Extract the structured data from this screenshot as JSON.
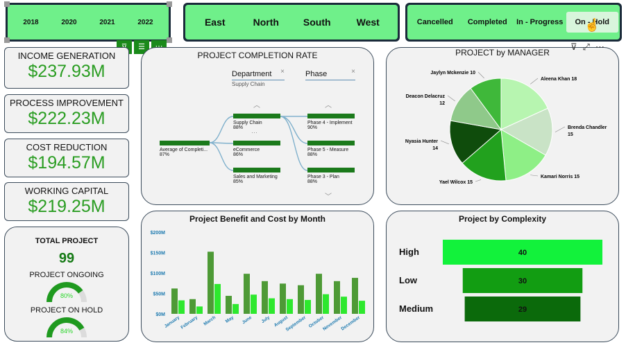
{
  "year_slicer": [
    "2018",
    "2020",
    "2021",
    "2022"
  ],
  "region_slicer": [
    "East",
    "North",
    "South",
    "West"
  ],
  "status_slicer": [
    "Cancelled",
    "Completed",
    "In - Progress",
    "On - Hold"
  ],
  "kpis": [
    {
      "label": "INCOME GENERATION",
      "value": "$237.93M"
    },
    {
      "label": "PROCESS IMPROVEMENT",
      "value": "$222.23M"
    },
    {
      "label": "COST REDUCTION",
      "value": "$194.57M"
    },
    {
      "label": "WORKING CAPITAL",
      "value": "$219.25M"
    }
  ],
  "totals": {
    "total_label": "TOTAL PROJECT",
    "total_value": "99",
    "ongoing_label": "PROJECT ONGOING",
    "ongoing_pct": "80%",
    "ongoing_fraction": 0.8,
    "onhold_label": "PROJECT ON HOLD",
    "onhold_pct": "84%",
    "onhold_fraction": 0.84
  },
  "completion": {
    "title": "PROJECT COMPLETION RATE",
    "filter1_label": "Department",
    "filter1_value": "Supply Chain",
    "filter2_label": "Phase",
    "root": {
      "label": "Average of Completi...",
      "value": "87%"
    },
    "departments": [
      {
        "label": "Supply Chain",
        "value": "88%"
      },
      {
        "label": "eCommerce",
        "value": "86%"
      },
      {
        "label": "Sales and Marketing",
        "value": "85%"
      }
    ],
    "phases": [
      {
        "label": "Phase 4 - Implement",
        "value": "90%"
      },
      {
        "label": "Phase 5 - Measure",
        "value": "88%"
      },
      {
        "label": "Phase 3 - Plan",
        "value": "88%"
      }
    ]
  },
  "manager": {
    "title": "PROJECT by MANAGER",
    "labels": [
      {
        "name": "Aleena Khan",
        "value": "18"
      },
      {
        "name": "Brenda Chandler",
        "value": "15"
      },
      {
        "name": "Kamari Norris",
        "value": "15"
      },
      {
        "name": "Yael Wilcox",
        "value": "15"
      },
      {
        "name": "Nyasia Hunter",
        "value": "14"
      },
      {
        "name": "Deacon Delacruz",
        "value": "12"
      },
      {
        "name": "Jaylyn Mckenzie",
        "value": "10"
      }
    ]
  },
  "benefit_cost": {
    "title": "Project Benefit  and Cost  by Month"
  },
  "complexity": {
    "title": "Project by Complexity",
    "rows": [
      {
        "label": "High",
        "value": "40"
      },
      {
        "label": "Low",
        "value": "30"
      },
      {
        "label": "Medium",
        "value": "29"
      }
    ]
  },
  "chart_data": [
    {
      "type": "pie",
      "title": "PROJECT by MANAGER",
      "categories": [
        "Aleena Khan",
        "Brenda Chandler",
        "Kamari Norris",
        "Yael Wilcox",
        "Nyasia Hunter",
        "Deacon Delacruz",
        "Jaylyn Mckenzie"
      ],
      "values": [
        18,
        15,
        15,
        15,
        14,
        12,
        10
      ],
      "colors": [
        "#b7f5b0",
        "#c9e3c6",
        "#8eef86",
        "#22a11e",
        "#0f4c0c",
        "#8fc98a",
        "#3fb83a"
      ]
    },
    {
      "type": "bar",
      "title": "Project Benefit  and Cost  by Month",
      "categories": [
        "January",
        "February",
        "March",
        "May",
        "June",
        "July",
        "August",
        "September",
        "October",
        "November",
        "December"
      ],
      "series": [
        {
          "values": [
            62,
            36,
            152,
            44,
            98,
            80,
            74,
            70,
            98,
            80,
            88
          ],
          "color": "#4e9a36"
        },
        {
          "values": [
            33,
            18,
            73,
            24,
            47,
            38,
            36,
            34,
            48,
            42,
            32
          ],
          "color": "#2ee82e"
        }
      ],
      "yticks": [
        "$0M",
        "$50M",
        "$100M",
        "$150M",
        "$200M"
      ],
      "ylim": [
        0,
        200
      ]
    },
    {
      "type": "bar",
      "title": "Project by Complexity",
      "categories": [
        "High",
        "Low",
        "Medium"
      ],
      "values": [
        40,
        30,
        29
      ],
      "colors": [
        "#12f23b",
        "#129d12",
        "#0b6a0b"
      ]
    }
  ]
}
